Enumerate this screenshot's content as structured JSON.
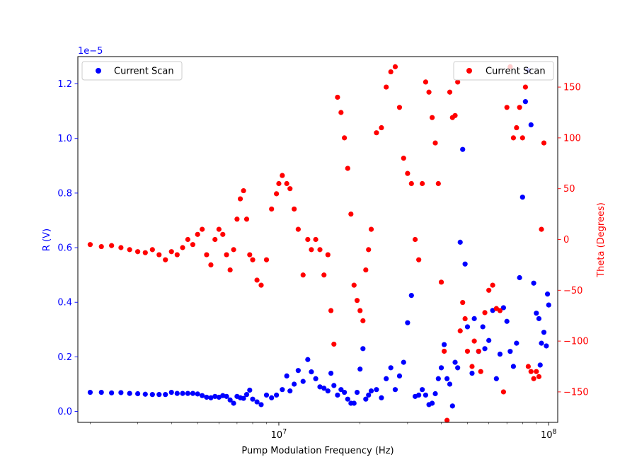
{
  "chart_data": {
    "type": "scatter",
    "xlabel": "Pump Modulation Frequency (Hz)",
    "x_scale": "log",
    "xlim": [
      1800000.0,
      108000000.0
    ],
    "x_ticks": [
      {
        "value": 10000000.0,
        "base": "10",
        "exp": "7"
      },
      {
        "value": 100000000.0,
        "base": "10",
        "exp": "8"
      }
    ],
    "left_axis": {
      "label": "R (V)",
      "color": "#0000ff",
      "offset_text": "1e−5",
      "ylim": [
        -0.04,
        1.3
      ],
      "ticks": [
        0.0,
        0.2,
        0.4,
        0.6,
        0.8,
        1.0,
        1.2
      ],
      "tick_labels": [
        "0.0",
        "0.2",
        "0.4",
        "0.6",
        "0.8",
        "1.0",
        "1.2"
      ]
    },
    "right_axis": {
      "label": "Theta (Degrees)",
      "color": "#ff0000",
      "ylim": [
        -180,
        180
      ],
      "ticks": [
        -150,
        -100,
        -50,
        0,
        50,
        100,
        150
      ],
      "tick_labels": [
        "−150",
        "−100",
        "−50",
        "0",
        "50",
        "100",
        "150"
      ]
    },
    "legend_left": {
      "label": "Current Scan",
      "color": "#0000ff",
      "placement": "upper left"
    },
    "legend_right": {
      "label": "Current Scan",
      "color": "#ff0000",
      "placement": "upper right"
    },
    "series": [
      {
        "axis": "left",
        "color": "#0000ff",
        "points": [
          [
            2000000.0,
            0.07
          ],
          [
            2200000.0,
            0.07
          ],
          [
            2400000.0,
            0.068
          ],
          [
            2600000.0,
            0.069
          ],
          [
            2800000.0,
            0.066
          ],
          [
            3000000.0,
            0.065
          ],
          [
            3200000.0,
            0.063
          ],
          [
            3400000.0,
            0.062
          ],
          [
            3600000.0,
            0.062
          ],
          [
            3800000.0,
            0.062
          ],
          [
            4000000.0,
            0.07
          ],
          [
            4200000.0,
            0.066
          ],
          [
            4400000.0,
            0.066
          ],
          [
            4600000.0,
            0.066
          ],
          [
            4800000.0,
            0.066
          ],
          [
            5000000.0,
            0.064
          ],
          [
            5200000.0,
            0.058
          ],
          [
            5400000.0,
            0.052
          ],
          [
            5600000.0,
            0.05
          ],
          [
            5800000.0,
            0.055
          ],
          [
            6000000.0,
            0.052
          ],
          [
            6200000.0,
            0.058
          ],
          [
            6400000.0,
            0.055
          ],
          [
            6600000.0,
            0.042
          ],
          [
            6800000.0,
            0.03
          ],
          [
            7000000.0,
            0.055
          ],
          [
            7200000.0,
            0.05
          ],
          [
            7400000.0,
            0.048
          ],
          [
            7600000.0,
            0.062
          ],
          [
            7800000.0,
            0.078
          ],
          [
            8000000.0,
            0.045
          ],
          [
            8300000.0,
            0.035
          ],
          [
            8600000.0,
            0.025
          ],
          [
            9000000.0,
            0.06
          ],
          [
            9400000.0,
            0.05
          ],
          [
            9800000.0,
            0.06
          ],
          [
            10300000.0,
            0.08
          ],
          [
            10700000.0,
            0.13
          ],
          [
            11000000.0,
            0.075
          ],
          [
            11400000.0,
            0.1
          ],
          [
            11800000.0,
            0.15
          ],
          [
            12300000.0,
            0.11
          ],
          [
            12800000.0,
            0.19
          ],
          [
            13200000.0,
            0.145
          ],
          [
            13700000.0,
            0.12
          ],
          [
            14200000.0,
            0.09
          ],
          [
            14700000.0,
            0.085
          ],
          [
            15200000.0,
            0.075
          ],
          [
            15600000.0,
            0.14
          ],
          [
            16000000.0,
            0.095
          ],
          [
            16500000.0,
            0.06
          ],
          [
            17000000.0,
            0.08
          ],
          [
            17500000.0,
            0.07
          ],
          [
            18000000.0,
            0.045
          ],
          [
            18500000.0,
            0.03
          ],
          [
            19000000.0,
            0.03
          ],
          [
            19500000.0,
            0.07
          ],
          [
            20000000.0,
            0.155
          ],
          [
            20500000.0,
            0.23
          ],
          [
            21000000.0,
            0.045
          ],
          [
            21500000.0,
            0.06
          ],
          [
            22000000.0,
            0.075
          ],
          [
            23000000.0,
            0.08
          ],
          [
            24000000.0,
            0.05
          ],
          [
            25000000.0,
            0.12
          ],
          [
            26000000.0,
            0.16
          ],
          [
            27000000.0,
            0.08
          ],
          [
            28000000.0,
            0.13
          ],
          [
            29000000.0,
            0.18
          ],
          [
            30000000.0,
            0.325
          ],
          [
            31000000.0,
            0.425
          ],
          [
            32000000.0,
            0.055
          ],
          [
            33000000.0,
            0.06
          ],
          [
            34000000.0,
            0.08
          ],
          [
            35000000.0,
            0.06
          ],
          [
            36000000.0,
            0.025
          ],
          [
            37000000.0,
            0.03
          ],
          [
            38000000.0,
            0.065
          ],
          [
            39000000.0,
            0.12
          ],
          [
            40000000.0,
            0.16
          ],
          [
            41000000.0,
            0.245
          ],
          [
            42000000.0,
            0.12
          ],
          [
            43000000.0,
            0.1
          ],
          [
            44000000.0,
            0.02
          ],
          [
            45000000.0,
            0.18
          ],
          [
            46000000.0,
            0.16
          ],
          [
            47000000.0,
            0.62
          ],
          [
            48000000.0,
            0.96
          ],
          [
            49000000.0,
            0.54
          ],
          [
            50000000.0,
            0.31
          ],
          [
            52000000.0,
            0.14
          ],
          [
            53000000.0,
            0.34
          ],
          [
            55000000.0,
            0.22
          ],
          [
            57000000.0,
            0.31
          ],
          [
            58000000.0,
            0.23
          ],
          [
            60000000.0,
            0.26
          ],
          [
            62000000.0,
            0.37
          ],
          [
            64000000.0,
            0.12
          ],
          [
            66000000.0,
            0.21
          ],
          [
            68000000.0,
            0.38
          ],
          [
            70000000.0,
            0.33
          ],
          [
            72000000.0,
            0.22
          ],
          [
            74000000.0,
            0.165
          ],
          [
            76000000.0,
            0.25
          ],
          [
            78000000.0,
            0.49
          ],
          [
            80000000.0,
            0.785
          ],
          [
            82000000.0,
            1.135
          ],
          [
            84000000.0,
            1.25
          ],
          [
            86000000.0,
            1.05
          ],
          [
            88000000.0,
            0.47
          ],
          [
            90000000.0,
            0.36
          ],
          [
            92000000.0,
            0.34
          ],
          [
            94000000.0,
            0.25
          ],
          [
            96000000.0,
            0.29
          ],
          [
            98000000.0,
            0.24
          ],
          [
            99000000.0,
            0.43
          ],
          [
            100000000.0,
            0.39
          ],
          [
            93000000.0,
            0.17
          ]
        ]
      },
      {
        "axis": "right",
        "color": "#ff0000",
        "points": [
          [
            2000000.0,
            -5
          ],
          [
            2200000.0,
            -7
          ],
          [
            2400000.0,
            -6
          ],
          [
            2600000.0,
            -8
          ],
          [
            2800000.0,
            -10
          ],
          [
            3000000.0,
            -12
          ],
          [
            3200000.0,
            -13
          ],
          [
            3400000.0,
            -10
          ],
          [
            3600000.0,
            -15
          ],
          [
            3800000.0,
            -20
          ],
          [
            4000000.0,
            -12
          ],
          [
            4200000.0,
            -15
          ],
          [
            4400000.0,
            -8
          ],
          [
            4600000.0,
            0
          ],
          [
            4800000.0,
            -5
          ],
          [
            5000000.0,
            5
          ],
          [
            5200000.0,
            10
          ],
          [
            5400000.0,
            -15
          ],
          [
            5600000.0,
            -25
          ],
          [
            5800000.0,
            0
          ],
          [
            6000000.0,
            10
          ],
          [
            6200000.0,
            5
          ],
          [
            6400000.0,
            -15
          ],
          [
            6600000.0,
            -30
          ],
          [
            6800000.0,
            -10
          ],
          [
            7000000.0,
            20
          ],
          [
            7200000.0,
            40
          ],
          [
            7400000.0,
            48
          ],
          [
            7600000.0,
            20
          ],
          [
            7800000.0,
            -15
          ],
          [
            8000000.0,
            -20
          ],
          [
            8300000.0,
            -40
          ],
          [
            8600000.0,
            -45
          ],
          [
            9000000.0,
            -20
          ],
          [
            9400000.0,
            30
          ],
          [
            9800000.0,
            45
          ],
          [
            10000000.0,
            55
          ],
          [
            10300000.0,
            63
          ],
          [
            10700000.0,
            55
          ],
          [
            11000000.0,
            50
          ],
          [
            11400000.0,
            30
          ],
          [
            11800000.0,
            10
          ],
          [
            12300000.0,
            -35
          ],
          [
            12800000.0,
            0
          ],
          [
            13200000.0,
            -10
          ],
          [
            13700000.0,
            0
          ],
          [
            14200000.0,
            -10
          ],
          [
            14700000.0,
            -35
          ],
          [
            15200000.0,
            -15
          ],
          [
            15600000.0,
            -70
          ],
          [
            16000000.0,
            -103
          ],
          [
            16500000.0,
            140
          ],
          [
            17000000.0,
            125
          ],
          [
            17500000.0,
            100
          ],
          [
            18000000.0,
            70
          ],
          [
            18500000.0,
            25
          ],
          [
            19000000.0,
            -45
          ],
          [
            19500000.0,
            -60
          ],
          [
            20000000.0,
            -70
          ],
          [
            20500000.0,
            -80
          ],
          [
            21000000.0,
            -30
          ],
          [
            21500000.0,
            -10
          ],
          [
            22000000.0,
            10
          ],
          [
            23000000.0,
            105
          ],
          [
            24000000.0,
            110
          ],
          [
            25000000.0,
            150
          ],
          [
            26000000.0,
            165
          ],
          [
            27000000.0,
            170
          ],
          [
            28000000.0,
            130
          ],
          [
            29000000.0,
            80
          ],
          [
            30000000.0,
            65
          ],
          [
            31000000.0,
            55
          ],
          [
            32000000.0,
            0
          ],
          [
            33000000.0,
            -20
          ],
          [
            34000000.0,
            55
          ],
          [
            35000000.0,
            155
          ],
          [
            36000000.0,
            145
          ],
          [
            37000000.0,
            120
          ],
          [
            38000000.0,
            95
          ],
          [
            39000000.0,
            55
          ],
          [
            40000000.0,
            -42
          ],
          [
            41000000.0,
            -110
          ],
          [
            42000000.0,
            -178
          ],
          [
            43000000.0,
            145
          ],
          [
            44000000.0,
            120
          ],
          [
            45000000.0,
            122
          ],
          [
            46000000.0,
            155
          ],
          [
            47000000.0,
            -90
          ],
          [
            48000000.0,
            -62
          ],
          [
            49000000.0,
            -78
          ],
          [
            50000000.0,
            -110
          ],
          [
            52000000.0,
            -125
          ],
          [
            53000000.0,
            -100
          ],
          [
            55000000.0,
            -110
          ],
          [
            56000000.0,
            -130
          ],
          [
            58000000.0,
            -72
          ],
          [
            60000000.0,
            -50
          ],
          [
            62000000.0,
            -45
          ],
          [
            64000000.0,
            -68
          ],
          [
            66000000.0,
            -70
          ],
          [
            68000000.0,
            -150
          ],
          [
            70000000.0,
            130
          ],
          [
            72000000.0,
            170
          ],
          [
            74000000.0,
            100
          ],
          [
            76000000.0,
            110
          ],
          [
            78000000.0,
            130
          ],
          [
            80000000.0,
            100
          ],
          [
            82000000.0,
            150
          ],
          [
            84000000.0,
            -125
          ],
          [
            86000000.0,
            -130
          ],
          [
            88000000.0,
            -137
          ],
          [
            90000000.0,
            -130
          ],
          [
            92000000.0,
            -135
          ],
          [
            94000000.0,
            10
          ],
          [
            96000000.0,
            95
          ]
        ]
      }
    ]
  }
}
